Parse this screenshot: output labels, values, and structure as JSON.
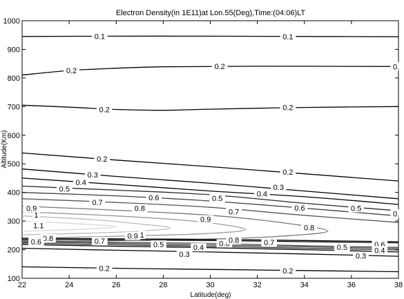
{
  "chart_data": {
    "type": "contour",
    "title": "Electron Density(in 1E11)at Lon.55(Deg),Time:(04:06)LT",
    "xlabel": "Latitude(deg)",
    "ylabel": "Altitude(Km)",
    "xlim": [
      22,
      38
    ],
    "ylim": [
      100,
      1000
    ],
    "xticks": [
      "22",
      "24",
      "26",
      "28",
      "30",
      "32",
      "34",
      "36",
      "38"
    ],
    "yticks": [
      "100",
      "200",
      "300",
      "400",
      "500",
      "600",
      "700",
      "800",
      "900",
      "1000"
    ],
    "grid": false,
    "contours": [
      {
        "level": 0.1,
        "color": "#000000",
        "points": [
          [
            22,
            945
          ],
          [
            26,
            946
          ],
          [
            30,
            946
          ],
          [
            34,
            945
          ],
          [
            38,
            944
          ]
        ]
      },
      {
        "level": 0.2,
        "color": "#000000",
        "points": [
          [
            22,
            810
          ],
          [
            24,
            826
          ],
          [
            26,
            834
          ],
          [
            28,
            839
          ],
          [
            32,
            841
          ],
          [
            38,
            840
          ]
        ]
      },
      {
        "level": 0.2,
        "color": "#000000",
        "points": [
          [
            22,
            705
          ],
          [
            24,
            698
          ],
          [
            26,
            690
          ],
          [
            28,
            687
          ],
          [
            30,
            691
          ],
          [
            34,
            697
          ],
          [
            38,
            700
          ]
        ]
      },
      {
        "level": 0.2,
        "color": "#000000",
        "points": [
          [
            22,
            538
          ],
          [
            26,
            513
          ],
          [
            30,
            490
          ],
          [
            34,
            465
          ],
          [
            38,
            440
          ]
        ]
      },
      {
        "level": 0.3,
        "color": "#000000",
        "points": [
          [
            22,
            482
          ],
          [
            26,
            456
          ],
          [
            30,
            432
          ],
          [
            34,
            405
          ],
          [
            38,
            378
          ]
        ]
      },
      {
        "level": 0.4,
        "color": "#000000",
        "points": [
          [
            22,
            450
          ],
          [
            26,
            428
          ],
          [
            30,
            405
          ],
          [
            34,
            385
          ],
          [
            38,
            358
          ]
        ]
      },
      {
        "level": 0.5,
        "color": "#262626",
        "points": [
          [
            22,
            422
          ],
          [
            26,
            408
          ],
          [
            30,
            392
          ],
          [
            34,
            362
          ],
          [
            38,
            336
          ]
        ]
      },
      {
        "level": 0.6,
        "color": "#3a3a3a",
        "points": [
          [
            22,
            400
          ],
          [
            26,
            388
          ],
          [
            30,
            370
          ],
          [
            34,
            345
          ],
          [
            38,
            318
          ]
        ]
      },
      {
        "level": 0.7,
        "color": "#555555",
        "points": [
          [
            22,
            378
          ],
          [
            26,
            365
          ],
          [
            30,
            348
          ],
          [
            34,
            320
          ],
          [
            38,
            295
          ]
        ]
      },
      {
        "level": 0.8,
        "color": "#777777",
        "points": [
          [
            22,
            352
          ],
          [
            26,
            338
          ],
          [
            30,
            320
          ],
          [
            33,
            295
          ],
          [
            35,
            265
          ],
          [
            33,
            247
          ],
          [
            30,
            237
          ],
          [
            26,
            232
          ],
          [
            22,
            226
          ]
        ]
      },
      {
        "level": 0.9,
        "color": "#999999",
        "points": [
          [
            22,
            332
          ],
          [
            26,
            318
          ],
          [
            29.5,
            298
          ],
          [
            31.5,
            270
          ],
          [
            29.5,
            255
          ],
          [
            26,
            247
          ],
          [
            22,
            240
          ]
        ]
      },
      {
        "level": 1.0,
        "color": "#bbbbbb",
        "points": [
          [
            22,
            318
          ],
          [
            25,
            305
          ],
          [
            27,
            290
          ],
          [
            28.3,
            276
          ],
          [
            27,
            265
          ],
          [
            25,
            258
          ],
          [
            22,
            252
          ]
        ]
      },
      {
        "level": 1.1,
        "color": "#d8d8d8",
        "points": [
          [
            22,
            300
          ],
          [
            24.5,
            290
          ],
          [
            26,
            280
          ],
          [
            24.5,
            271
          ],
          [
            22,
            264
          ]
        ]
      },
      {
        "level": 0.7,
        "color": "#555555",
        "points": [
          [
            22,
            232
          ],
          [
            26,
            226
          ],
          [
            30,
            222
          ],
          [
            34,
            214
          ],
          [
            38,
            208
          ]
        ]
      },
      {
        "level": 0.6,
        "color": "#3a3a3a",
        "points": [
          [
            22,
            228
          ],
          [
            26,
            222
          ],
          [
            30,
            217
          ],
          [
            34,
            210
          ],
          [
            38,
            204
          ]
        ]
      },
      {
        "level": 0.5,
        "color": "#262626",
        "points": [
          [
            22,
            223
          ],
          [
            26,
            217
          ],
          [
            30,
            212
          ],
          [
            34,
            205
          ],
          [
            38,
            199
          ]
        ]
      },
      {
        "level": 0.4,
        "color": "#000000",
        "points": [
          [
            22,
            218
          ],
          [
            26,
            212
          ],
          [
            30,
            207
          ],
          [
            34,
            200
          ],
          [
            38,
            192
          ]
        ]
      },
      {
        "level": 0.3,
        "color": "#000000",
        "points": [
          [
            22,
            205
          ],
          [
            26,
            198
          ],
          [
            30,
            192
          ],
          [
            34,
            185
          ],
          [
            38,
            177
          ]
        ]
      },
      {
        "level": 0.2,
        "color": "#000000",
        "points": [
          [
            22,
            140
          ],
          [
            26,
            135
          ],
          [
            30,
            131
          ],
          [
            34,
            127
          ],
          [
            38,
            123
          ]
        ]
      },
      {
        "level": 0.3,
        "color": "#000000",
        "points": [
          [
            22,
            240
          ],
          [
            26,
            238
          ],
          [
            30,
            236
          ],
          [
            34,
            232
          ],
          [
            38,
            228
          ]
        ]
      },
      {
        "level": 0.4,
        "color": "#000000",
        "points": [
          [
            22,
            236
          ],
          [
            26,
            234
          ],
          [
            30,
            232
          ],
          [
            34,
            228
          ],
          [
            38,
            224
          ]
        ]
      }
    ],
    "labels": [
      {
        "text": "0.1",
        "x": 25.3,
        "y": 946
      },
      {
        "text": "0.1",
        "x": 33.3,
        "y": 945
      },
      {
        "text": "0.2",
        "x": 24.1,
        "y": 826
      },
      {
        "text": "0.2",
        "x": 30.4,
        "y": 841
      },
      {
        "text": "0.",
        "x": 37.9,
        "y": 840
      },
      {
        "text": "0.2",
        "x": 25.5,
        "y": 690
      },
      {
        "text": "0.2",
        "x": 33.3,
        "y": 697
      },
      {
        "text": "0.2",
        "x": 25.4,
        "y": 518
      },
      {
        "text": "0.2",
        "x": 33.3,
        "y": 472
      },
      {
        "text": "0.3",
        "x": 25.0,
        "y": 462
      },
      {
        "text": "0.3",
        "x": 32.9,
        "y": 418
      },
      {
        "text": "0.4",
        "x": 24.5,
        "y": 435
      },
      {
        "text": "0.4",
        "x": 32.2,
        "y": 395
      },
      {
        "text": "0.5",
        "x": 23.8,
        "y": 412
      },
      {
        "text": "0.5",
        "x": 30.3,
        "y": 380
      },
      {
        "text": "0.5",
        "x": 36.2,
        "y": 345
      },
      {
        "text": "0.6",
        "x": 27.6,
        "y": 382
      },
      {
        "text": "0.6",
        "x": 33.8,
        "y": 346
      },
      {
        "text": "0.",
        "x": 37.9,
        "y": 326
      },
      {
        "text": "0.7",
        "x": 25.2,
        "y": 365
      },
      {
        "text": "0.7",
        "x": 31.0,
        "y": 333
      },
      {
        "text": "0.8",
        "x": 27.0,
        "y": 345
      },
      {
        "text": "0.8",
        "x": 34.2,
        "y": 277
      },
      {
        "text": "0.9",
        "x": 22.4,
        "y": 345
      },
      {
        "text": "0.9",
        "x": 29.8,
        "y": 306
      },
      {
        "text": "1",
        "x": 22.6,
        "y": 322
      },
      {
        "text": "1.1",
        "x": 22.7,
        "y": 284
      },
      {
        "text": "0.9",
        "x": 26.7,
        "y": 248
      },
      {
        "text": "1",
        "x": 27.1,
        "y": 252
      },
      {
        "text": "0.8",
        "x": 23.1,
        "y": 240
      },
      {
        "text": "0.6",
        "x": 22.6,
        "y": 228
      },
      {
        "text": "0.7",
        "x": 25.3,
        "y": 230
      },
      {
        "text": "0.5",
        "x": 27.8,
        "y": 218
      },
      {
        "text": "0.4",
        "x": 29.5,
        "y": 208
      },
      {
        "text": "0.6",
        "x": 30.6,
        "y": 222
      },
      {
        "text": "0.8",
        "x": 31.0,
        "y": 234
      },
      {
        "text": "0.7",
        "x": 32.5,
        "y": 226
      },
      {
        "text": "0.5",
        "x": 35.6,
        "y": 208
      },
      {
        "text": "0.6",
        "x": 37.2,
        "y": 218
      },
      {
        "text": "0.4",
        "x": 37.2,
        "y": 198
      },
      {
        "text": "0.3",
        "x": 28.9,
        "y": 185
      },
      {
        "text": "0.3",
        "x": 36.4,
        "y": 178
      },
      {
        "text": "0.2",
        "x": 25.5,
        "y": 135
      },
      {
        "text": "0.2",
        "x": 33.3,
        "y": 127
      }
    ]
  }
}
